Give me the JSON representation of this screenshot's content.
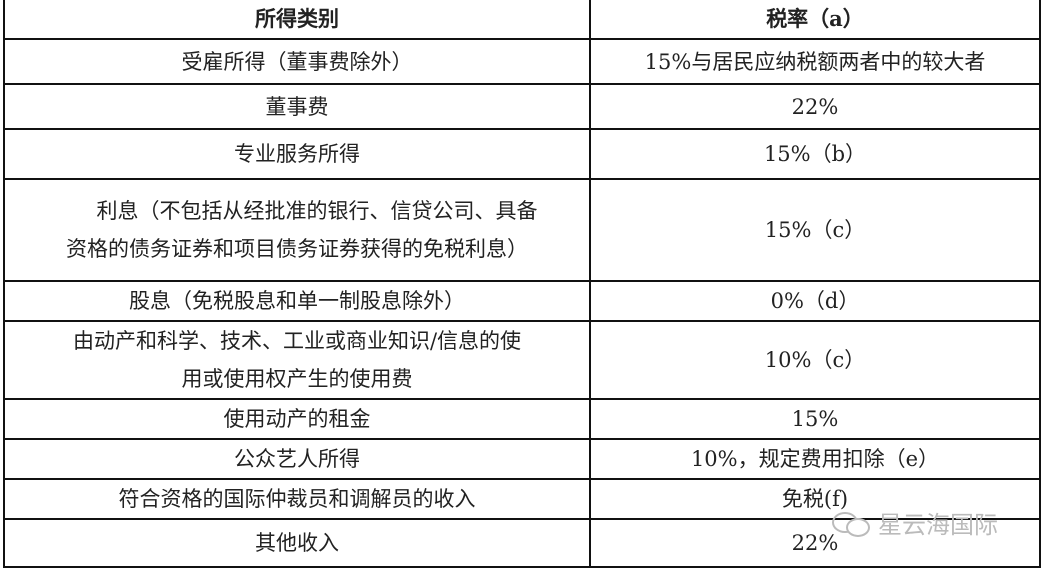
{
  "table": {
    "headers": [
      "所得类别",
      "税率（a）"
    ],
    "rows": [
      {
        "category": [
          "受雇所得（董事费除外）"
        ],
        "rate": "15%与居民应纳税额两者中的较大者"
      },
      {
        "category": [
          "董事费"
        ],
        "rate": "22%"
      },
      {
        "category": [
          "专业服务所得"
        ],
        "rate": "15%（b）"
      },
      {
        "category": [
          "利息（不包括从经批准的银行、信贷公司、具备",
          "资格的债务证券和项目债务证券获得的免税利息）"
        ],
        "rate": "15%（c）"
      },
      {
        "category": [
          "股息（免税股息和单一制股息除外）"
        ],
        "rate": "0%（d）"
      },
      {
        "category": [
          "由动产和科学、技术、工业或商业知识/信息的使",
          "用或使用权产生的使用费"
        ],
        "rate": "10%（c）"
      },
      {
        "category": [
          "使用动产的租金"
        ],
        "rate": "15%"
      },
      {
        "category": [
          "公众艺人所得"
        ],
        "rate": "10%，规定费用扣除（e）"
      },
      {
        "category": [
          "符合资格的国际仲裁员和调解员的收入"
        ],
        "rate": "免税(f)"
      },
      {
        "category": [
          "其他收入"
        ],
        "rate": "22%"
      }
    ]
  },
  "watermark": {
    "text": "星云海国际",
    "icon": "wechat-icon"
  }
}
